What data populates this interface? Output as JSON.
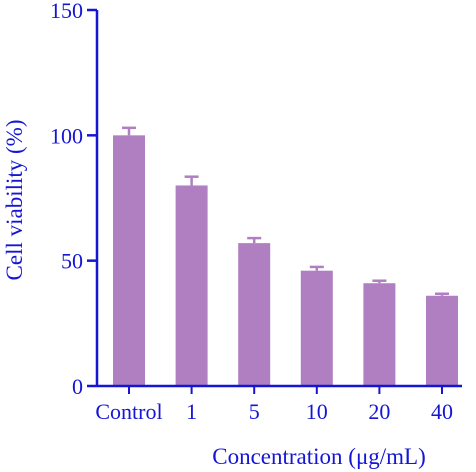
{
  "chart_data": {
    "type": "bar",
    "title": "",
    "xlabel": "Concentration (μg/mL)",
    "ylabel": "Cell viability (%)",
    "categories": [
      "Control",
      "1",
      "5",
      "10",
      "20",
      "40"
    ],
    "values": [
      100,
      80,
      57,
      46,
      41,
      36
    ],
    "errors": [
      3,
      3.5,
      2,
      1.5,
      1,
      0.8
    ],
    "ylim": [
      0,
      150
    ],
    "yticks": [
      0,
      50,
      100,
      150
    ],
    "grid": false,
    "legend": "none"
  },
  "colors": {
    "bar": "#b07fc2",
    "axis": "#1515d6",
    "text": "#1515d6"
  }
}
